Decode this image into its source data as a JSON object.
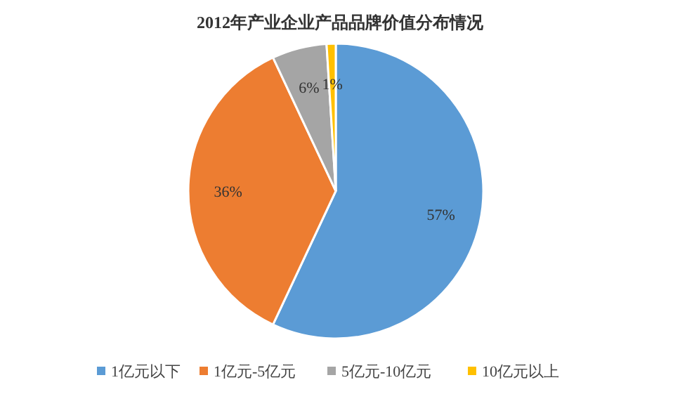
{
  "chart_data": {
    "type": "pie",
    "title": "2012年产业企业产品品牌价值分布情况",
    "categories": [
      "1亿元以下",
      "1亿元-5亿元",
      "5亿元-10亿元",
      "10亿元以上"
    ],
    "values": [
      57,
      36,
      6,
      1
    ],
    "colors": [
      "#5b9bd5",
      "#ed7d31",
      "#a5a5a5",
      "#ffc000"
    ],
    "value_labels": [
      "57%",
      "36%",
      "6%",
      "1%"
    ],
    "legend": "bottom"
  }
}
